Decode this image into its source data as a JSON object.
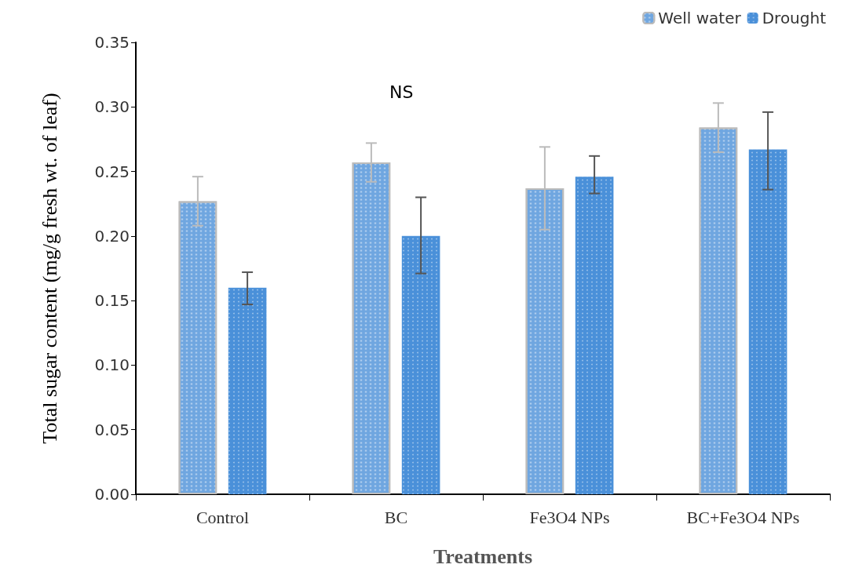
{
  "chart_data": {
    "type": "bar",
    "xlabel": "Treatments",
    "ylabel": "Total sugar content (mg/g fresh wt. of leaf)",
    "categories": [
      "Control",
      "BC",
      "Fe3O4 NPs",
      "BC+Fe3O4 NPs"
    ],
    "series": [
      {
        "name": "Well water",
        "color": "#6fa6e0",
        "values": [
          0.227,
          0.257,
          0.237,
          0.284
        ],
        "errors": [
          [
            0.208,
            0.246
          ],
          [
            0.242,
            0.272
          ],
          [
            0.205,
            0.269
          ],
          [
            0.265,
            0.303
          ]
        ]
      },
      {
        "name": "Drought",
        "color": "#4a90d9",
        "values": [
          0.16,
          0.2,
          0.246,
          0.267
        ],
        "errors": [
          [
            0.147,
            0.172
          ],
          [
            0.171,
            0.23
          ],
          [
            0.233,
            0.262
          ],
          [
            0.236,
            0.296
          ]
        ]
      }
    ],
    "ylim": [
      0,
      0.35
    ],
    "yticks": [
      {
        "value": 0,
        "label": "0.00"
      },
      {
        "value": 0.05,
        "label": "0.05"
      },
      {
        "value": 0.1,
        "label": "0.10"
      },
      {
        "value": 0.15,
        "label": "0.15"
      },
      {
        "value": 0.2,
        "label": "0.20"
      },
      {
        "value": 0.25,
        "label": "0.25"
      },
      {
        "value": 0.3,
        "label": "0.30"
      },
      {
        "value": 0.35,
        "label": "0.35"
      }
    ],
    "annotations": [
      "NS"
    ],
    "grid": false,
    "legend": "top right"
  }
}
